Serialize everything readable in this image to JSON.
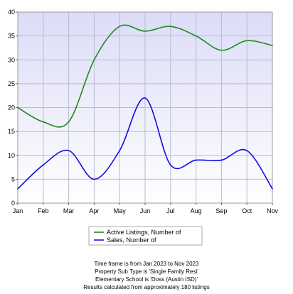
{
  "chart_data": {
    "type": "line",
    "categories": [
      "Jan",
      "Feb",
      "Mar",
      "Apr",
      "May",
      "Jun",
      "Jul",
      "Aug",
      "Sep",
      "Oct",
      "Nov"
    ],
    "series": [
      {
        "name": "Active Listings, Number of",
        "color": "#1f8a1f",
        "values": [
          20,
          17,
          17,
          30,
          37,
          36,
          37,
          35,
          32,
          34,
          33
        ]
      },
      {
        "name": "Sales, Number of",
        "color": "#1010e0",
        "values": [
          3,
          8,
          11,
          5,
          11,
          22,
          8,
          9,
          9,
          11,
          3
        ]
      }
    ],
    "ylim": [
      0,
      40
    ],
    "yticks": [
      0,
      5,
      10,
      15,
      20,
      25,
      30,
      35,
      40
    ],
    "grid": true,
    "legend_position": "bottom-center",
    "plot_background": "#e9e9fb"
  },
  "notes": [
    "Time frame is from Jan 2023 to Nov 2023",
    "Property Sub Type is 'Single Family Resi'",
    "Elementary School is 'Doss (Austin ISD)'",
    "Results calculated from approximately 180 listings"
  ]
}
